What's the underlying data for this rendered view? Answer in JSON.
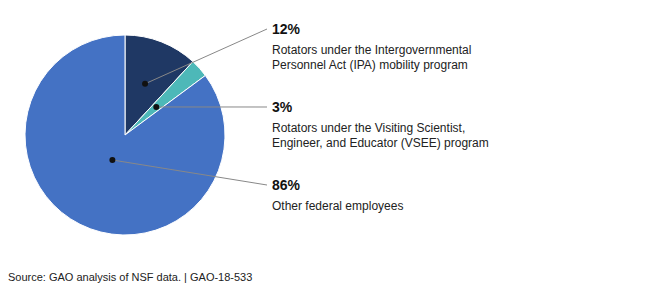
{
  "chart_data": {
    "type": "pie",
    "categories": [
      "Rotators under the Intergovernmental\nPersonnel Act (IPA) mobility program",
      "Rotators under the Visiting Scientist,\nEngineer, and Educator (VSEE) program",
      "Other federal employees"
    ],
    "values": [
      12,
      3,
      86
    ],
    "value_labels": [
      "12%",
      "3%",
      "86%"
    ],
    "data_labels": true,
    "colors": [
      "#1f3864",
      "#4db8b8",
      "#4472c4"
    ],
    "annotations": [
      "Source: GAO analysis of NSF data.  |  GAO-18-533"
    ]
  }
}
